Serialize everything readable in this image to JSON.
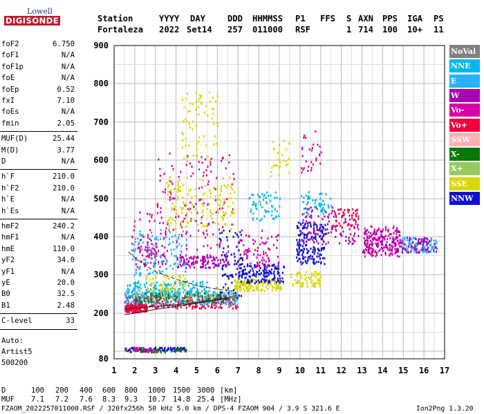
{
  "logo": {
    "top": "Lowell",
    "bottom": "DIGISONDE"
  },
  "header": {
    "labels": [
      "Station",
      "YYYY",
      "DAY",
      "DDD",
      "HHMMSS",
      "P1",
      "FFS",
      "S",
      "AXN",
      "PPS",
      "IGA",
      "PS"
    ],
    "values": [
      "Fortaleza",
      "2022",
      "Set14",
      "257",
      "011000",
      "RSF",
      "1",
      "714",
      "100",
      "10+",
      "11"
    ]
  },
  "params": {
    "group1": [
      {
        "label": "foF2",
        "value": "6.750"
      },
      {
        "label": "foF1",
        "value": "N/A"
      },
      {
        "label": "foF1p",
        "value": "N/A"
      },
      {
        "label": "foE",
        "value": "N/A"
      },
      {
        "label": "foEp",
        "value": "0.52"
      },
      {
        "label": "fxI",
        "value": "7.10"
      },
      {
        "label": "foEs",
        "value": "N/A"
      },
      {
        "label": "fmin",
        "value": "2.05"
      }
    ],
    "group2": [
      {
        "label": "MUF(D)",
        "value": "25.44"
      },
      {
        "label": "M(D)",
        "value": "3.77"
      },
      {
        "label": "D",
        "value": "N/A"
      }
    ],
    "group3": [
      {
        "label": "h`F",
        "value": "210.0"
      },
      {
        "label": "h`F2",
        "value": "210.0"
      },
      {
        "label": "h`E",
        "value": "N/A"
      },
      {
        "label": "h`Es",
        "value": "N/A"
      }
    ],
    "group4": [
      {
        "label": "hmF2",
        "value": "240.2"
      },
      {
        "label": "hmF1",
        "value": "N/A"
      },
      {
        "label": "hmE",
        "value": "110.0"
      },
      {
        "label": "yF2",
        "value": "34.0"
      },
      {
        "label": "yF1",
        "value": "N/A"
      },
      {
        "label": "yE",
        "value": "20.0"
      },
      {
        "label": "B0",
        "value": "32.5"
      },
      {
        "label": "B1",
        "value": "2.48"
      }
    ],
    "group5": [
      {
        "label": "C-level",
        "value": "33"
      }
    ]
  },
  "auto": [
    "Auto:",
    "Artist5",
    "500200"
  ],
  "legend": [
    {
      "label": "NoVal",
      "color": "#808080"
    },
    {
      "label": "NNE",
      "color": "#00b8f0"
    },
    {
      "label": "E",
      "color": "#2ab0ff"
    },
    {
      "label": "W",
      "color": "#a800b0"
    },
    {
      "label": "Vo-",
      "color": "#d800a8"
    },
    {
      "label": "Vo+",
      "color": "#f0003c"
    },
    {
      "label": "SSW",
      "color": "#ffb0b0"
    },
    {
      "label": "X-",
      "color": "#087808"
    },
    {
      "label": "X+",
      "color": "#98c860"
    },
    {
      "label": "SSE",
      "color": "#d8d800"
    },
    {
      "label": "NNW",
      "color": "#1010d0"
    }
  ],
  "footer": {
    "d_label": "D",
    "d_values": [
      "100",
      "200",
      "400",
      "600",
      "800",
      "1000",
      "1500",
      "3000",
      "[km]"
    ],
    "muf_label": "MUF",
    "muf_values": [
      "7.1",
      "7.2",
      "7.6",
      "8.3",
      "9.3",
      "10.7",
      "14.8",
      "25.4",
      "[MHz]"
    ],
    "info": "FZAOM_2022257011000.RSF / 320fx256h 50 kHz 5.0 km / DPS-4 FZAOM 904 / 3.9 S 321.6 E",
    "version": "Ion2Png 1.3.20"
  },
  "chart_data": {
    "type": "scatter",
    "title": "",
    "xlabel": "",
    "ylabel": "",
    "xlim": [
      1,
      17
    ],
    "ylim": [
      80,
      900
    ],
    "x_ticks": [
      "1",
      "2",
      "3",
      "4",
      "5",
      "6",
      "7",
      "8",
      "9",
      "10",
      "11",
      "12",
      "13",
      "14",
      "15",
      "16",
      "17"
    ],
    "y_ticks": [
      "80",
      "200",
      "300",
      "400",
      "500",
      "600",
      "700",
      "800",
      "900"
    ],
    "y_tick_values": [
      80,
      200,
      300,
      400,
      500,
      600,
      700,
      800,
      900
    ],
    "grid": true,
    "profile": [
      [
        1.5,
        196
      ],
      [
        2.0,
        200
      ],
      [
        2.5,
        205
      ],
      [
        3.0,
        210
      ],
      [
        3.5,
        214
      ],
      [
        4.0,
        218
      ],
      [
        4.5,
        222
      ],
      [
        5.0,
        226
      ],
      [
        5.5,
        230
      ],
      [
        6.0,
        234
      ],
      [
        6.5,
        238
      ],
      [
        6.75,
        240
      ]
    ],
    "trace_upper": [
      [
        1.7,
        360
      ],
      [
        2.0,
        345
      ],
      [
        2.5,
        325
      ],
      [
        3.0,
        308
      ],
      [
        4.0,
        288
      ],
      [
        5.0,
        272
      ],
      [
        6.0,
        262
      ],
      [
        6.75,
        258
      ]
    ],
    "trace_lower": [
      [
        1.5,
        212
      ],
      [
        2.0,
        214
      ],
      [
        3.0,
        218
      ],
      [
        4.0,
        222
      ],
      [
        5.0,
        228
      ],
      [
        6.0,
        236
      ],
      [
        6.75,
        244
      ]
    ],
    "clusters": [
      {
        "x": [
          1.5,
          2.6
        ],
        "h": [
          205,
          225
        ],
        "color": "#f0003c",
        "n": 120
      },
      {
        "x": [
          1.5,
          7.0
        ],
        "h": [
          215,
          250
        ],
        "color": "#f0003c",
        "n": 260
      },
      {
        "x": [
          1.5,
          7.0
        ],
        "h": [
          225,
          260
        ],
        "color": "#2ab0ff",
        "n": 220
      },
      {
        "x": [
          1.5,
          5.5
        ],
        "h": [
          245,
          285
        ],
        "color": "#00b8f0",
        "n": 180
      },
      {
        "x": [
          2.0,
          7.0
        ],
        "h": [
          230,
          255
        ],
        "color": "#087808",
        "n": 90
      },
      {
        "x": [
          2.0,
          7.0
        ],
        "h": [
          235,
          270
        ],
        "color": "#98c860",
        "n": 60
      },
      {
        "x": [
          2.5,
          4.5
        ],
        "h": [
          260,
          300
        ],
        "color": "#d8d800",
        "n": 50
      },
      {
        "x": [
          4.0,
          6.5
        ],
        "h": [
          320,
          350
        ],
        "color": "#a800b0",
        "n": 110
      },
      {
        "x": [
          2.0,
          3.5
        ],
        "h": [
          320,
          380
        ],
        "color": "#d800a8",
        "n": 60
      },
      {
        "x": [
          1.8,
          4.5
        ],
        "h": [
          300,
          420
        ],
        "color": "#2ab0ff",
        "n": 120
      },
      {
        "x": [
          1.8,
          6.8
        ],
        "h": [
          340,
          480
        ],
        "color": "#d800a8",
        "n": 110
      },
      {
        "x": [
          3.5,
          6.8
        ],
        "h": [
          420,
          560
        ],
        "color": "#d8d800",
        "n": 160
      },
      {
        "x": [
          4.2,
          6.0
        ],
        "h": [
          600,
          780
        ],
        "color": "#d8d800",
        "n": 70
      },
      {
        "x": [
          3.0,
          6.8
        ],
        "h": [
          480,
          620
        ],
        "color": "#d800a8",
        "n": 70
      },
      {
        "x": [
          6.0,
          7.2
        ],
        "h": [
          240,
          420
        ],
        "color": "#1010d0",
        "n": 80
      },
      {
        "x": [
          6.8,
          9.2
        ],
        "h": [
          260,
          290
        ],
        "color": "#d8d800",
        "n": 140
      },
      {
        "x": [
          7.0,
          9.2
        ],
        "h": [
          280,
          330
        ],
        "color": "#1010d0",
        "n": 150
      },
      {
        "x": [
          7.0,
          9.0
        ],
        "h": [
          320,
          420
        ],
        "color": "#d800a8",
        "n": 80
      },
      {
        "x": [
          7.5,
          9.0
        ],
        "h": [
          440,
          520
        ],
        "color": "#00b8f0",
        "n": 60
      },
      {
        "x": [
          8.5,
          9.5
        ],
        "h": [
          560,
          660
        ],
        "color": "#d8d800",
        "n": 30
      },
      {
        "x": [
          9.5,
          11.0
        ],
        "h": [
          270,
          310
        ],
        "color": "#d8d800",
        "n": 70
      },
      {
        "x": [
          9.8,
          11.2
        ],
        "h": [
          330,
          440
        ],
        "color": "#1010d0",
        "n": 160
      },
      {
        "x": [
          10.0,
          12.8
        ],
        "h": [
          380,
          480
        ],
        "color": "#a800b0",
        "n": 120
      },
      {
        "x": [
          10.0,
          11.5
        ],
        "h": [
          460,
          520
        ],
        "color": "#00b8f0",
        "n": 50
      },
      {
        "x": [
          10.0,
          11.0
        ],
        "h": [
          560,
          680
        ],
        "color": "#d800a8",
        "n": 30
      },
      {
        "x": [
          11.5,
          12.8
        ],
        "h": [
          420,
          480
        ],
        "color": "#f0003c",
        "n": 40
      },
      {
        "x": [
          13.0,
          14.8
        ],
        "h": [
          350,
          430
        ],
        "color": "#d800a8",
        "n": 130
      },
      {
        "x": [
          13.0,
          14.8
        ],
        "h": [
          360,
          420
        ],
        "color": "#a800b0",
        "n": 90
      },
      {
        "x": [
          14.8,
          16.6
        ],
        "h": [
          360,
          400
        ],
        "color": "#2ab0ff",
        "n": 110
      },
      {
        "x": [
          14.8,
          16.6
        ],
        "h": [
          360,
          400
        ],
        "color": "#a800b0",
        "n": 70
      },
      {
        "x": [
          1.5,
          4.5
        ],
        "h": [
          102,
          112
        ],
        "color": "#1010d0",
        "n": 90
      },
      {
        "x": [
          1.5,
          4.5
        ],
        "h": [
          98,
          108
        ],
        "color": "#087808",
        "n": 40
      },
      {
        "x": [
          1.5,
          3.0
        ],
        "h": [
          100,
          112
        ],
        "color": "#d800a8",
        "n": 30
      }
    ]
  }
}
